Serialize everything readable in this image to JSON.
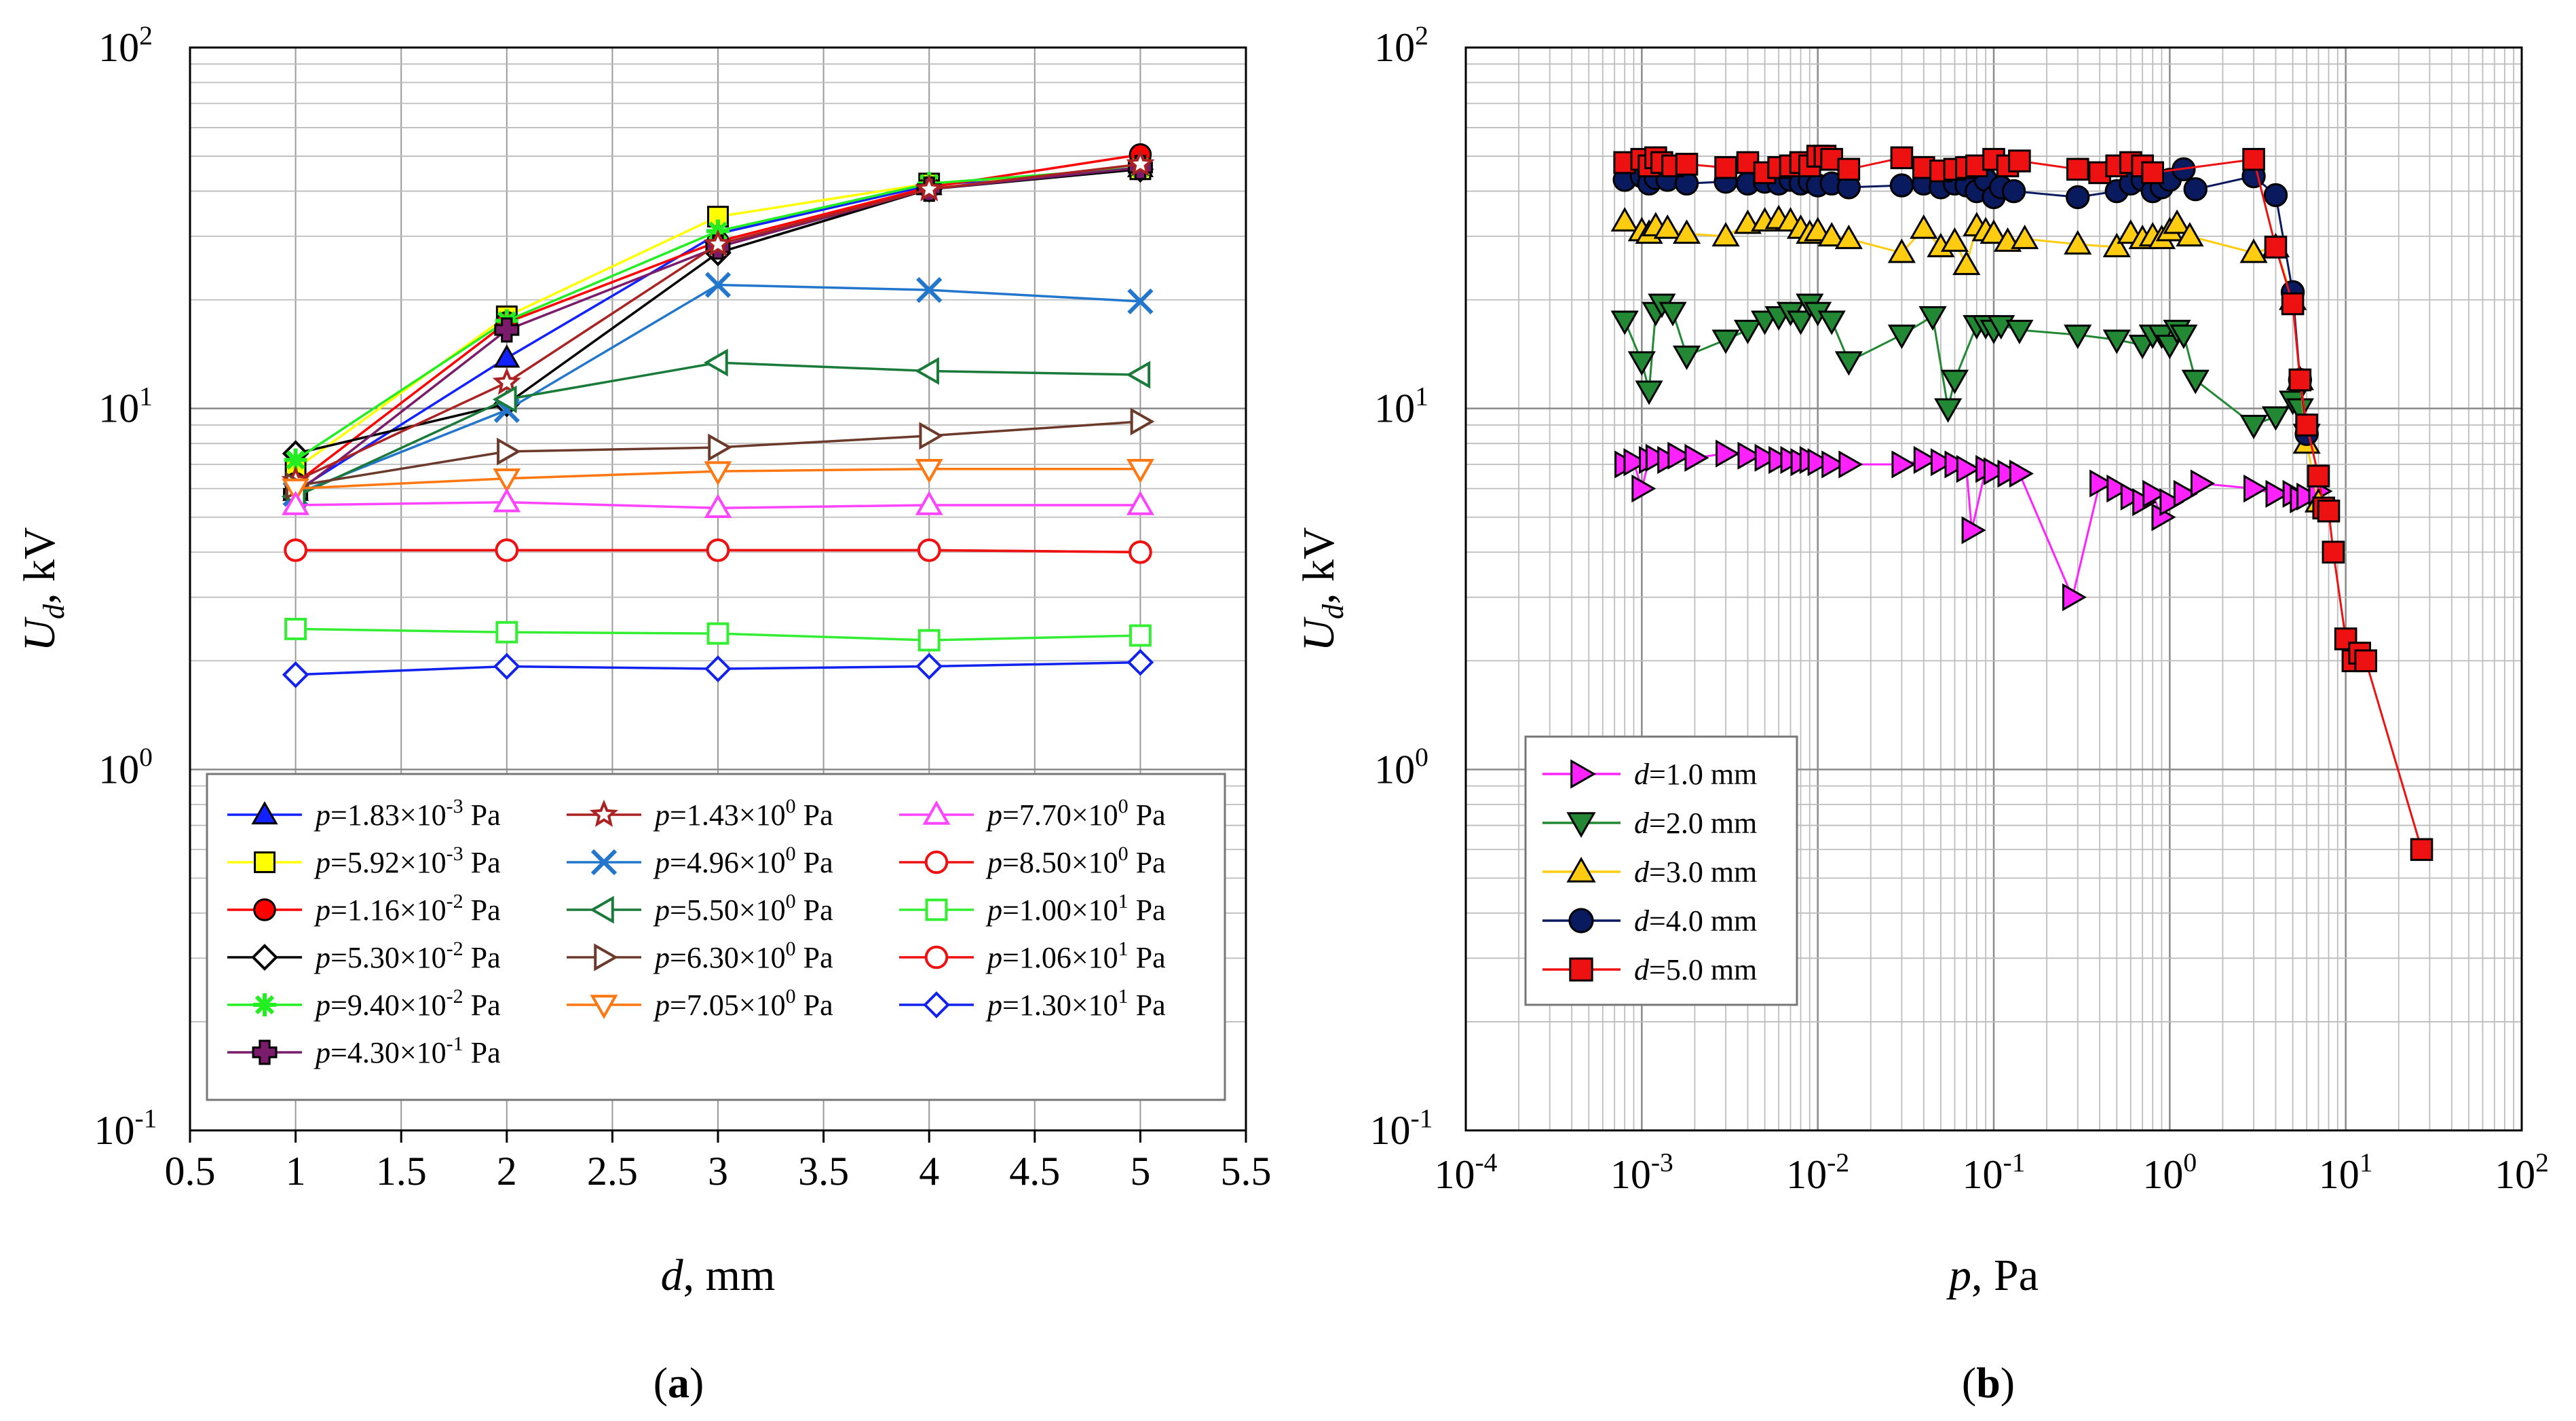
{
  "figure": {
    "caption_a": "(a)",
    "caption_b": "(b)"
  },
  "chart_data": [
    {
      "id": "a",
      "type": "line",
      "title": "",
      "xlabel": "d, mm",
      "ylabel": "Ud, kV",
      "xscale": "linear",
      "yscale": "log",
      "xlim": [
        0.5,
        5.5
      ],
      "ylim": [
        0.1,
        100
      ],
      "x_ticks": [
        "0.5",
        "1",
        "1.5",
        "2",
        "2.5",
        "3",
        "3.5",
        "4",
        "4.5",
        "5",
        "5.5"
      ],
      "y_ticks": [
        {
          "base": "10",
          "exp": "-1",
          "value": 0.1
        },
        {
          "base": "10",
          "exp": "0",
          "value": 1
        },
        {
          "base": "10",
          "exp": "1",
          "value": 10
        },
        {
          "base": "10",
          "exp": "2",
          "value": 100
        }
      ],
      "grid": true,
      "legend": "bottom",
      "x": [
        1,
        2,
        3,
        4,
        5
      ],
      "series": [
        {
          "name": "p=1.83×10-3 Pa",
          "prefix": "=1.83×10",
          "exp": "-3",
          "values": [
            5.9,
            13.8,
            30.5,
            41.5,
            46.5
          ],
          "color": "#1122ff",
          "marker": "triangle-up"
        },
        {
          "name": "p=5.92×10-3 Pa",
          "prefix": "=5.92×10",
          "exp": "-3",
          "values": [
            6.8,
            18.0,
            34.0,
            42.0,
            46.0
          ],
          "color": "#ffff00",
          "marker": "square"
        },
        {
          "name": "p=1.16×10-2 Pa",
          "prefix": "=1.16×10",
          "exp": "-2",
          "values": [
            6.2,
            17.3,
            29.0,
            41.0,
            50.5
          ],
          "color": "#ff0000",
          "marker": "circle"
        },
        {
          "name": "p=5.30×10-2 Pa",
          "prefix": "=5.30×10",
          "exp": "-2",
          "values": [
            7.5,
            10.3,
            27.0,
            40.5,
            46.0
          ],
          "color": "#000000",
          "marker": "diamond-open"
        },
        {
          "name": "p=9.40×10-2 Pa",
          "prefix": "=9.40×10",
          "exp": "-2",
          "values": [
            7.2,
            17.5,
            31.0,
            42.0,
            46.5
          ],
          "color": "#22ee22",
          "marker": "star-burst"
        },
        {
          "name": "p=4.30×10-1 Pa",
          "prefix": "=4.30×10",
          "exp": "-1",
          "values": [
            5.8,
            16.5,
            28.0,
            40.5,
            46.5
          ],
          "color": "#7b1b6b",
          "marker": "cross-fill"
        },
        {
          "name": "p=1.43×100 Pa",
          "prefix": "=1.43×10",
          "exp": "0",
          "values": [
            6.3,
            11.8,
            28.5,
            40.5,
            47.5
          ],
          "color": "#aa2222",
          "marker": "star-open"
        },
        {
          "name": "p=4.96×100 Pa",
          "prefix": "=4.96×10",
          "exp": "0",
          "values": [
            5.8,
            9.9,
            22.0,
            21.3,
            19.8
          ],
          "color": "#2277cc",
          "marker": "x"
        },
        {
          "name": "p=5.50×100 Pa",
          "prefix": "=5.50×10",
          "exp": "0",
          "values": [
            5.7,
            10.6,
            13.4,
            12.7,
            12.4
          ],
          "color": "#1a7a3a",
          "marker": "triangle-left-open"
        },
        {
          "name": "p=6.30×100 Pa",
          "prefix": "=6.30×10",
          "exp": "0",
          "values": [
            6.1,
            7.6,
            7.8,
            8.4,
            9.2
          ],
          "color": "#6b3a2a",
          "marker": "triangle-right-open"
        },
        {
          "name": "p=7.05×100 Pa",
          "prefix": "=7.05×10",
          "exp": "0",
          "values": [
            6.0,
            6.4,
            6.7,
            6.8,
            6.8
          ],
          "color": "#ff7711",
          "marker": "triangle-down-open"
        },
        {
          "name": "p=7.70×100 Pa",
          "prefix": "=7.70×10",
          "exp": "0",
          "values": [
            5.4,
            5.5,
            5.3,
            5.4,
            5.4
          ],
          "color": "#ff44ff",
          "marker": "triangle-up-open"
        },
        {
          "name": "p=8.50×100 Pa",
          "prefix": "=8.50×10",
          "exp": "0",
          "values": [
            4.05,
            4.05,
            4.05,
            4.05,
            4.0
          ],
          "color": "#ee1111",
          "marker": "circle-open"
        },
        {
          "name": "p=1.00×101 Pa",
          "prefix": "=1.00×10",
          "exp": "1",
          "values": [
            2.45,
            2.4,
            2.38,
            2.28,
            2.35
          ],
          "color": "#33ee33",
          "marker": "square-open"
        },
        {
          "name": "p=1.06×101 Pa",
          "prefix": "=1.06×10",
          "exp": "1",
          "values": [
            4.05,
            4.05,
            4.05,
            4.05,
            4.0
          ],
          "color": "#ee1111",
          "marker": "circle-open"
        },
        {
          "name": "p=1.30×101 Pa",
          "prefix": "=1.30×10",
          "exp": "1",
          "values": [
            1.83,
            1.93,
            1.9,
            1.93,
            1.98
          ],
          "color": "#1122ee",
          "marker": "diamond-open"
        }
      ]
    },
    {
      "id": "b",
      "type": "scatter",
      "title": "",
      "xlabel": "p, Pa",
      "ylabel": "Ud, kV",
      "xscale": "log",
      "yscale": "log",
      "xlim": [
        0.0001,
        100
      ],
      "ylim": [
        0.1,
        100
      ],
      "x_ticks": [
        {
          "base": "10",
          "exp": "-4",
          "value": 0.0001
        },
        {
          "base": "10",
          "exp": "-3",
          "value": 0.001
        },
        {
          "base": "10",
          "exp": "-2",
          "value": 0.01
        },
        {
          "base": "10",
          "exp": "-1",
          "value": 0.1
        },
        {
          "base": "10",
          "exp": "0",
          "value": 1
        },
        {
          "base": "10",
          "exp": "1",
          "value": 10
        },
        {
          "base": "10",
          "exp": "2",
          "value": 100
        }
      ],
      "y_ticks": [
        {
          "base": "10",
          "exp": "-1",
          "value": 0.1
        },
        {
          "base": "10",
          "exp": "0",
          "value": 1
        },
        {
          "base": "10",
          "exp": "1",
          "value": 10
        },
        {
          "base": "10",
          "exp": "2",
          "value": 100
        }
      ],
      "grid": true,
      "legend": "bottom-left",
      "series": [
        {
          "name": "d=1.0 mm",
          "label": "=1.0 mm",
          "color": "#ff22ff",
          "marker": "triangle-right",
          "x": [
            0.0008,
            0.0009,
            0.001,
            0.0011,
            0.0012,
            0.0014,
            0.0016,
            0.002,
            0.003,
            0.004,
            0.005,
            0.006,
            0.007,
            0.008,
            0.009,
            0.01,
            0.012,
            0.015,
            0.03,
            0.04,
            0.05,
            0.06,
            0.07,
            0.075,
            0.09,
            0.1,
            0.12,
            0.14,
            0.28,
            0.4,
            0.5,
            0.6,
            0.7,
            0.8,
            0.9,
            1.0,
            1.2,
            1.5,
            3.0,
            4.0,
            5.0,
            5.5,
            6.0,
            7.0
          ],
          "y": [
            7.0,
            7.1,
            6.0,
            7.2,
            7.3,
            7.2,
            7.4,
            7.3,
            7.5,
            7.4,
            7.3,
            7.2,
            7.2,
            7.1,
            7.2,
            7.1,
            7.0,
            7.0,
            7.0,
            7.2,
            7.1,
            7.0,
            6.8,
            4.6,
            6.8,
            6.7,
            6.6,
            6.6,
            3.0,
            6.2,
            6.0,
            5.7,
            5.5,
            5.8,
            5.0,
            5.5,
            5.8,
            6.2,
            6.0,
            5.8,
            5.8,
            5.6,
            5.7,
            5.9
          ]
        },
        {
          "name": "d=2.0 mm",
          "label": "=2.0 mm",
          "color": "#228833",
          "marker": "triangle-down",
          "x": [
            0.0008,
            0.001,
            0.0011,
            0.0012,
            0.0013,
            0.0015,
            0.0018,
            0.003,
            0.004,
            0.005,
            0.006,
            0.007,
            0.008,
            0.009,
            0.01,
            0.012,
            0.015,
            0.03,
            0.045,
            0.055,
            0.06,
            0.08,
            0.09,
            0.1,
            0.11,
            0.14,
            0.3,
            0.5,
            0.7,
            0.8,
            0.9,
            1.0,
            1.1,
            1.2,
            1.4,
            3.0,
            4.0,
            5.0,
            5.5,
            6.0
          ],
          "y": [
            17.5,
            13.5,
            11.2,
            18.5,
            19.5,
            18.5,
            14.0,
            15.5,
            16.5,
            17.5,
            18.0,
            18.5,
            17.5,
            19.5,
            18.5,
            17.5,
            13.5,
            16.0,
            18.0,
            10.0,
            12.0,
            17.0,
            17.0,
            16.5,
            17.0,
            16.5,
            16.0,
            15.5,
            15.0,
            16.0,
            16.0,
            15.0,
            16.5,
            16.0,
            12.0,
            9.0,
            9.5,
            10.5,
            10.0,
            8.5
          ]
        },
        {
          "name": "d=3.0 mm",
          "label": "=3.0 mm",
          "color": "#ffcc11",
          "marker": "triangle-up",
          "x": [
            0.0008,
            0.001,
            0.0011,
            0.0012,
            0.0014,
            0.0018,
            0.003,
            0.004,
            0.005,
            0.006,
            0.007,
            0.008,
            0.009,
            0.01,
            0.012,
            0.015,
            0.03,
            0.04,
            0.05,
            0.06,
            0.07,
            0.08,
            0.09,
            0.1,
            0.12,
            0.15,
            0.3,
            0.5,
            0.6,
            0.7,
            0.8,
            0.9,
            1.0,
            1.1,
            1.3,
            3.0,
            4.0,
            5.0,
            5.5,
            6.0,
            7.0
          ],
          "y": [
            33.0,
            31.0,
            30.5,
            32.0,
            31.5,
            30.5,
            30.0,
            32.5,
            33.0,
            33.5,
            33.0,
            31.5,
            30.5,
            31.0,
            30.0,
            29.5,
            27.0,
            31.5,
            28.0,
            29.0,
            25.0,
            32.0,
            31.0,
            30.5,
            29.0,
            29.5,
            28.5,
            28.0,
            30.5,
            29.5,
            30.0,
            29.5,
            31.0,
            32.5,
            30.0,
            27.0,
            28.0,
            20.0,
            12.0,
            8.0,
            5.5
          ]
        },
        {
          "name": "d=4.0 mm",
          "label": "=4.0 mm",
          "color": "#0a1a5e",
          "marker": "circle",
          "x": [
            0.0008,
            0.001,
            0.0011,
            0.0012,
            0.0014,
            0.0018,
            0.003,
            0.004,
            0.005,
            0.006,
            0.007,
            0.008,
            0.009,
            0.01,
            0.012,
            0.015,
            0.03,
            0.04,
            0.05,
            0.06,
            0.07,
            0.08,
            0.09,
            0.1,
            0.11,
            0.13,
            0.3,
            0.5,
            0.6,
            0.7,
            0.8,
            0.9,
            1.0,
            1.2,
            1.4,
            3.0,
            4.0,
            5.0,
            5.5,
            6.0
          ],
          "y": [
            43.0,
            44.0,
            42.0,
            43.5,
            43.0,
            42.0,
            42.5,
            42.0,
            42.5,
            42.0,
            43.0,
            42.0,
            42.5,
            41.5,
            42.0,
            41.0,
            41.5,
            42.0,
            41.0,
            42.0,
            41.5,
            40.0,
            43.0,
            38.5,
            41.0,
            40.0,
            38.5,
            40.0,
            42.0,
            43.0,
            40.0,
            41.0,
            43.0,
            46.0,
            40.5,
            44.0,
            39.0,
            21.0,
            12.0,
            8.5
          ]
        },
        {
          "name": "d=5.0 mm",
          "label": "=5.0 mm",
          "color": "#ee1111",
          "marker": "square",
          "x": [
            0.0008,
            0.001,
            0.0011,
            0.0012,
            0.0013,
            0.0015,
            0.0018,
            0.003,
            0.004,
            0.005,
            0.006,
            0.007,
            0.008,
            0.009,
            0.01,
            0.011,
            0.012,
            0.015,
            0.03,
            0.04,
            0.05,
            0.06,
            0.07,
            0.08,
            0.1,
            0.12,
            0.14,
            0.3,
            0.4,
            0.5,
            0.6,
            0.7,
            0.8,
            3.0,
            4.0,
            5.0,
            5.5,
            6.0,
            7.0,
            7.5,
            8.0,
            8.5,
            10.0,
            11.0,
            12.0,
            13.0,
            27.0
          ],
          "y": [
            48.0,
            49.0,
            47.0,
            49.5,
            48.0,
            47.0,
            47.5,
            46.5,
            48.0,
            45.0,
            46.5,
            47.0,
            48.0,
            47.0,
            50.0,
            50.0,
            49.0,
            46.0,
            49.5,
            46.5,
            45.5,
            46.0,
            46.5,
            47.0,
            49.0,
            47.0,
            48.5,
            46.0,
            45.0,
            47.0,
            48.0,
            47.0,
            45.0,
            49.0,
            28.0,
            19.5,
            12.0,
            9.0,
            6.5,
            5.3,
            5.2,
            4.0,
            2.3,
            2.0,
            2.1,
            2.0,
            0.6
          ]
        }
      ]
    }
  ]
}
